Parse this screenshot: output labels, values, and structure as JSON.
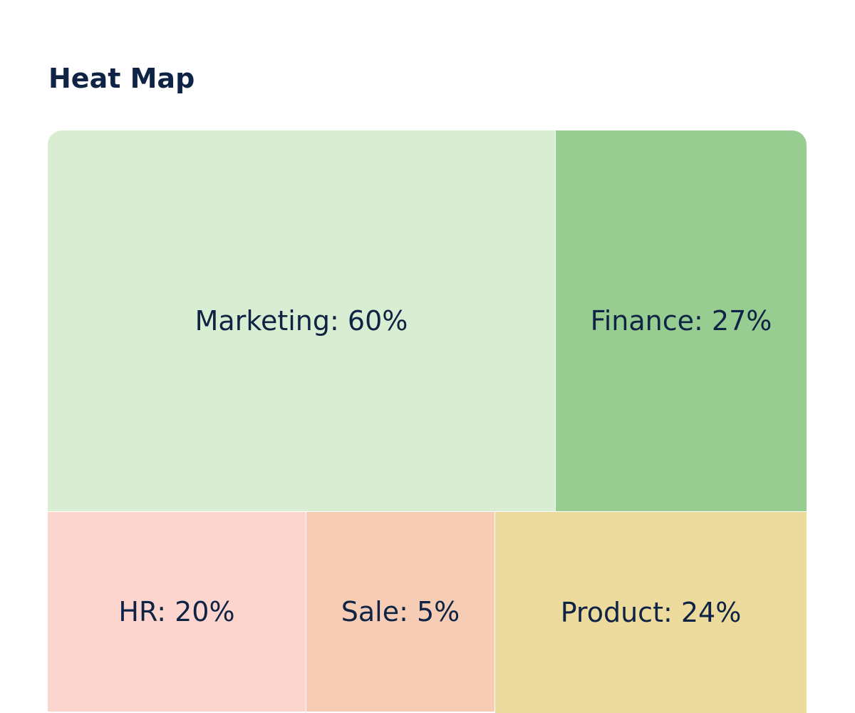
{
  "header": {
    "title": "Heat Map"
  },
  "tiles": [
    {
      "label": "Marketing: 60%",
      "color": "#d9edd2"
    },
    {
      "label": "Finance: 27%",
      "color": "#98cd92"
    },
    {
      "label": "HR: 20%",
      "color": "#fdd5cf"
    },
    {
      "label": "Sale: 5%",
      "color": "#f6ccb5"
    },
    {
      "label": "Product: 24%",
      "color": "#ecdb9d"
    }
  ]
}
